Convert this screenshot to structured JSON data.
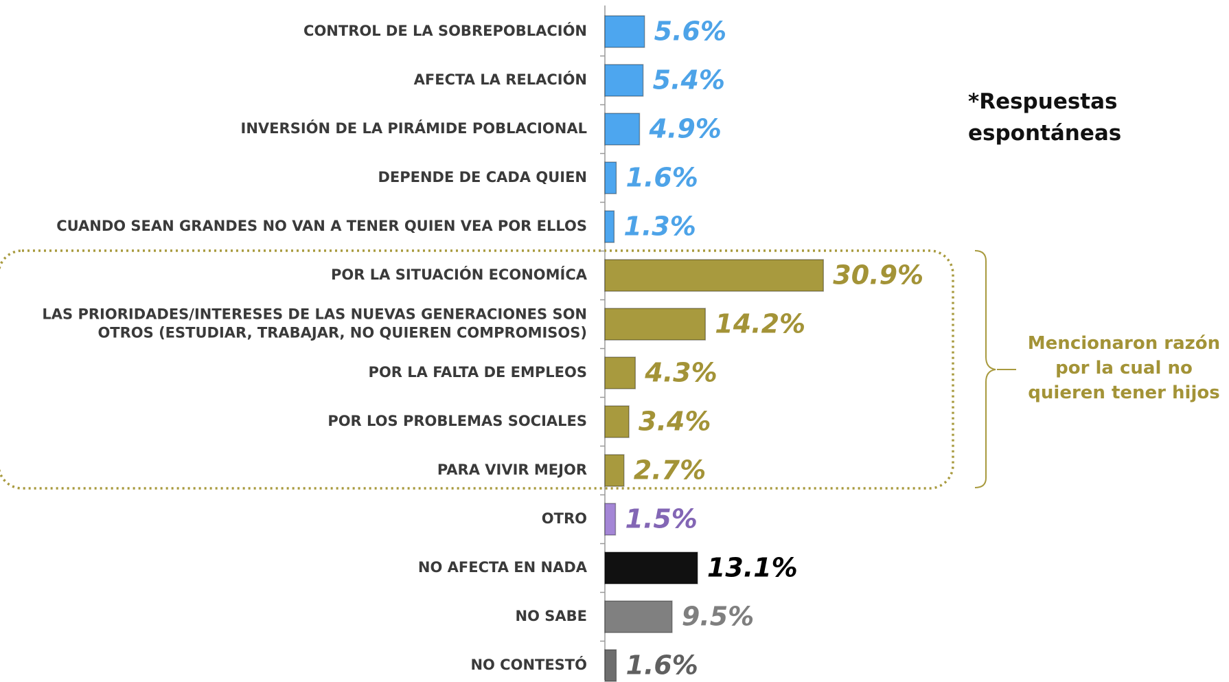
{
  "chart_data": {
    "type": "hbar",
    "categories": [
      "CONTROL DE LA SOBREPOBLACIÓN",
      "AFECTA LA RELACIÓN",
      "INVERSIÓN DE LA PIRÁMIDE POBLACIONAL",
      "DEPENDE DE CADA QUIEN",
      "CUANDO SEAN GRANDES NO VAN A TENER QUIEN VEA POR ELLOS",
      "POR LA SITUACIÓN ECONOMÍCA",
      "LAS  PRIORIDADES/INTERESES DE LAS NUEVAS GENERACIONES SON\nOTROS (ESTUDIAR, TRABAJAR, NO QUIEREN COMPROMISOS)",
      "POR LA FALTA DE EMPLEOS",
      "POR LOS PROBLEMAS SOCIALES",
      "PARA VIVIR MEJOR",
      "OTRO",
      "NO AFECTA EN NADA",
      "NO SABE",
      "NO CONTESTÓ"
    ],
    "values": [
      5.6,
      5.4,
      4.9,
      1.6,
      1.3,
      30.9,
      14.2,
      4.3,
      3.4,
      2.7,
      1.5,
      13.1,
      9.5,
      1.6
    ],
    "value_labels": [
      "5.6%",
      "5.4%",
      "4.9%",
      "1.6%",
      "1.3%",
      "30.9%",
      "14.2%",
      "4.3%",
      "3.4%",
      "2.7%",
      "1.5%",
      "13.1%",
      "9.5%",
      "1.6%"
    ],
    "colors": [
      "#4da6ef",
      "#4da6ef",
      "#4da6ef",
      "#4da6ef",
      "#4da6ef",
      "#a89a3e",
      "#a89a3e",
      "#a89a3e",
      "#a89a3e",
      "#a89a3e",
      "#a486d6",
      "#111111",
      "#808080",
      "#6e6e6e"
    ],
    "label_colors": [
      "#4da3e8",
      "#4da3e8",
      "#4da3e8",
      "#4da3e8",
      "#4da3e8",
      "#a39337",
      "#a39337",
      "#a39337",
      "#a39337",
      "#a39337",
      "#8366b5",
      "#000000",
      "#7f7f7f",
      "#606060"
    ],
    "xlim": [
      0,
      40
    ],
    "annotations": [
      "*Respuestas\nespontáneas",
      "Mencionaron razón\npor la cual no\nquieren tener hijos"
    ]
  }
}
